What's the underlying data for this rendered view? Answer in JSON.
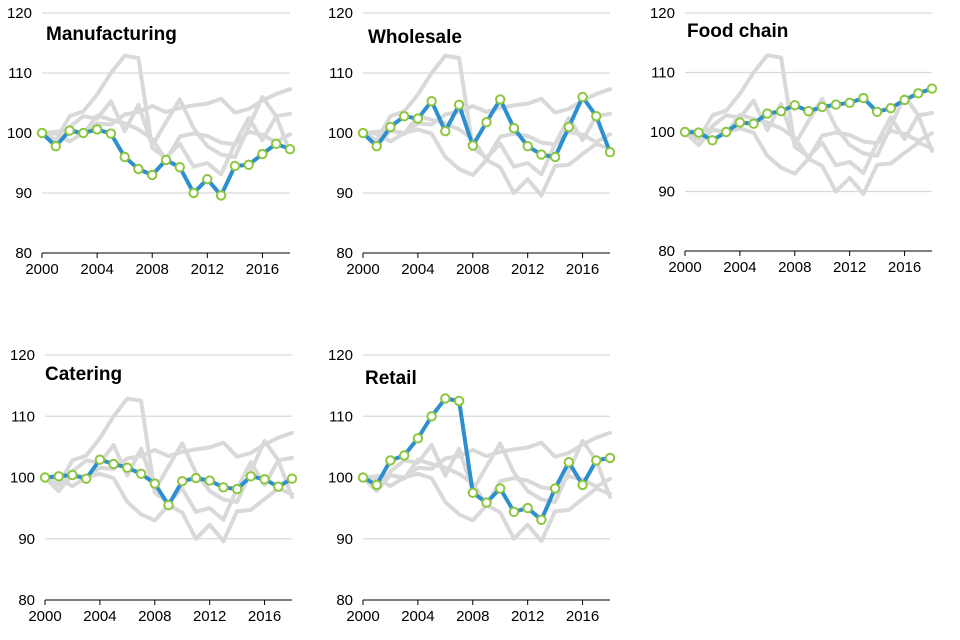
{
  "chart_data": [
    {
      "type": "line",
      "title": "Manufacturing",
      "x": [
        2000,
        2001,
        2002,
        2003,
        2004,
        2005,
        2006,
        2007,
        2008,
        2009,
        2010,
        2011,
        2012,
        2013,
        2014,
        2015,
        2016,
        2017,
        2018
      ],
      "values": [
        100,
        97.8,
        100.4,
        100,
        100.6,
        99.9,
        96,
        94,
        93,
        95.5,
        94.3,
        90,
        92.3,
        89.6,
        94.5,
        94.7,
        96.5,
        98.2,
        97.3
      ],
      "ylim": [
        80,
        120
      ],
      "yticks": [
        80,
        90,
        100,
        110,
        120
      ],
      "xticks": [
        2000,
        2004,
        2008,
        2012,
        2016
      ],
      "xlim": [
        2000,
        2018
      ],
      "xlabel": "",
      "ylabel": "",
      "grid": "horizontal"
    },
    {
      "type": "line",
      "title": "Wholesale",
      "x": [
        2000,
        2001,
        2002,
        2003,
        2004,
        2005,
        2006,
        2007,
        2008,
        2009,
        2010,
        2011,
        2012,
        2013,
        2014,
        2015,
        2016,
        2017,
        2018
      ],
      "values": [
        100,
        97.8,
        101,
        102.8,
        102.4,
        105.3,
        100.3,
        104.7,
        97.9,
        101.8,
        105.6,
        100.8,
        97.8,
        96.4,
        96,
        101,
        106,
        102.8,
        96.8
      ],
      "ylim": [
        80,
        120
      ],
      "yticks": [
        80,
        90,
        100,
        110,
        120
      ],
      "xticks": [
        2000,
        2004,
        2008,
        2012,
        2016
      ],
      "xlim": [
        2000,
        2018
      ],
      "xlabel": "",
      "ylabel": "",
      "grid": "horizontal"
    },
    {
      "type": "line",
      "title": "Food chain",
      "x": [
        2000,
        2001,
        2002,
        2003,
        2004,
        2005,
        2006,
        2007,
        2008,
        2009,
        2010,
        2011,
        2012,
        2013,
        2014,
        2015,
        2016,
        2017,
        2018
      ],
      "values": [
        100,
        99.9,
        98.6,
        100,
        101.6,
        101.4,
        103.1,
        103.5,
        104.5,
        103.5,
        104.2,
        104.6,
        104.9,
        105.7,
        103.4,
        104,
        105.4,
        106.5,
        107.3
      ],
      "ylim": [
        80,
        120
      ],
      "yticks": [
        80,
        90,
        100,
        110,
        120
      ],
      "xticks": [
        2000,
        2004,
        2008,
        2012,
        2016
      ],
      "xlim": [
        2000,
        2018
      ],
      "xlabel": "",
      "ylabel": "",
      "grid": "horizontal"
    },
    {
      "type": "line",
      "title": "Catering",
      "x": [
        2000,
        2001,
        2002,
        2003,
        2004,
        2005,
        2006,
        2007,
        2008,
        2009,
        2010,
        2011,
        2012,
        2013,
        2014,
        2015,
        2016,
        2017,
        2018
      ],
      "values": [
        100,
        100.2,
        100.4,
        99.8,
        102.9,
        102.2,
        101.6,
        100.6,
        99,
        95.5,
        99.4,
        99.9,
        99.5,
        98.4,
        98.1,
        100.2,
        99.7,
        98.5,
        99.8
      ],
      "ylim": [
        80,
        120
      ],
      "yticks": [
        80,
        90,
        100,
        110,
        120
      ],
      "xticks": [
        2000,
        2004,
        2008,
        2012,
        2016
      ],
      "xlim": [
        2000,
        2018
      ],
      "xlabel": "",
      "ylabel": "",
      "grid": "horizontal"
    },
    {
      "type": "line",
      "title": "Retail",
      "x": [
        2000,
        2001,
        2002,
        2003,
        2004,
        2005,
        2006,
        2007,
        2008,
        2009,
        2010,
        2011,
        2012,
        2013,
        2014,
        2015,
        2016,
        2017,
        2018
      ],
      "values": [
        100,
        98.8,
        102.8,
        103.6,
        106.4,
        110,
        112.9,
        112.5,
        97.5,
        95.9,
        98.2,
        94.4,
        95,
        93.1,
        98.2,
        102.5,
        98.8,
        102.8,
        103.2
      ],
      "ylim": [
        80,
        120
      ],
      "yticks": [
        80,
        90,
        100,
        110,
        120
      ],
      "xticks": [
        2000,
        2004,
        2008,
        2012,
        2016
      ],
      "xlim": [
        2000,
        2018
      ],
      "xlabel": "",
      "ylabel": "",
      "grid": "horizontal"
    }
  ],
  "colors": {
    "highlight_line": "#2e8fcf",
    "marker_stroke": "#8cc63f",
    "marker_fill": "#ffffff",
    "background_lines": "#d9d9d9",
    "gridline": "#d9d9d9",
    "axis": "#000000"
  }
}
